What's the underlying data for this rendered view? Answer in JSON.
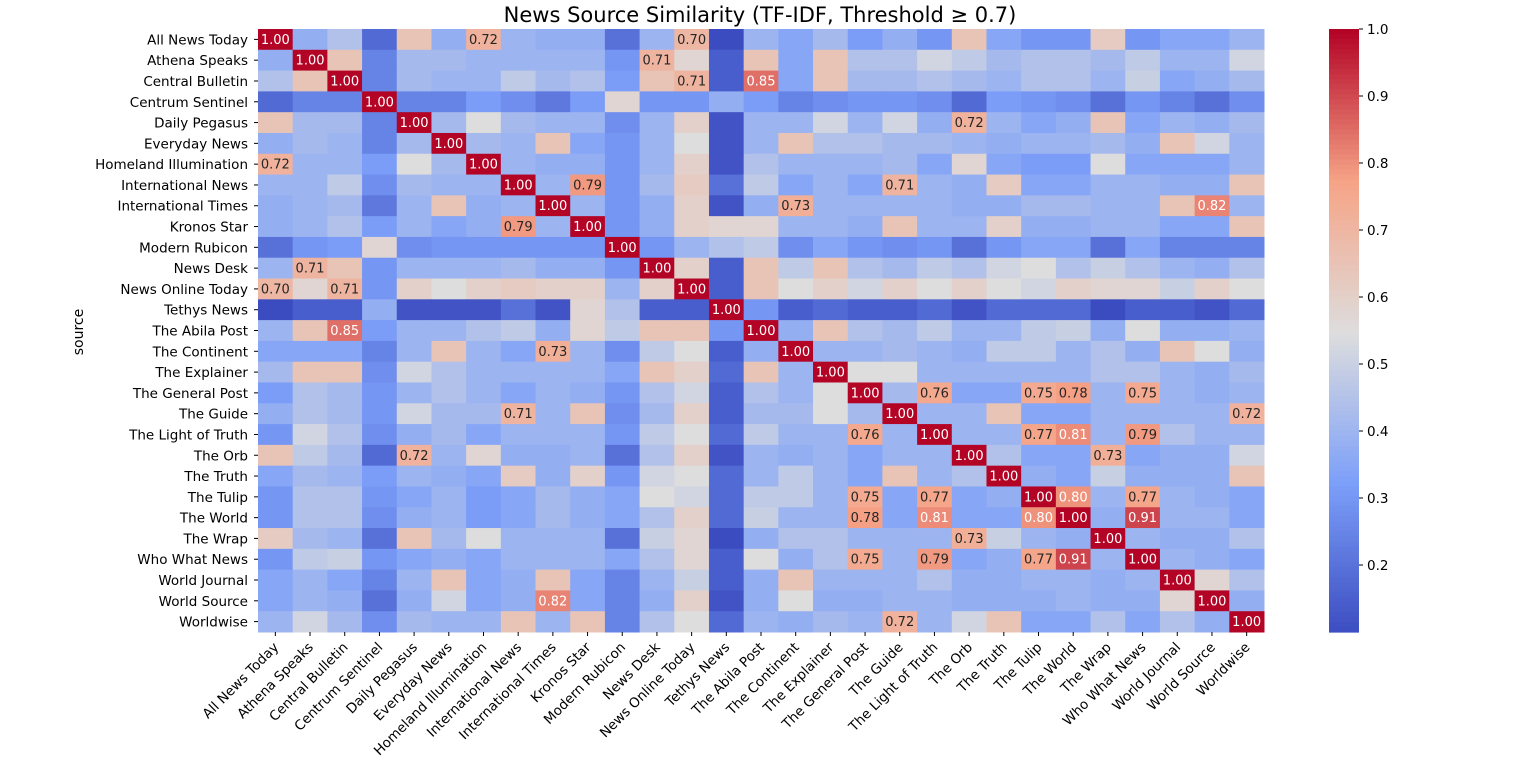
{
  "chart_data": {
    "type": "heatmap",
    "title": "News Source Similarity (TF-IDF, Threshold ≥ 0.7)",
    "ylabel": "source",
    "xlabel": "",
    "sources": [
      "All News Today",
      "Athena Speaks",
      "Central Bulletin",
      "Centrum Sentinel",
      "Daily Pegasus",
      "Everyday News",
      "Homeland Illumination",
      "International News",
      "International Times",
      "Kronos Star",
      "Modern Rubicon",
      "News Desk",
      "News Online Today",
      "Tethys News",
      "The Abila Post",
      "The Continent",
      "The Explainer",
      "The General Post",
      "The Guide",
      "The Light of Truth",
      "The Orb",
      "The Truth",
      "The Tulip",
      "The World",
      "The Wrap",
      "Who What News",
      "World Journal",
      "World Source",
      "Worldwise"
    ],
    "colormap": "coolwarm",
    "colorbar_range": [
      0.1,
      1.0
    ],
    "colorbar_ticks": [
      "0.2",
      "0.3",
      "0.4",
      "0.5",
      "0.6",
      "0.7",
      "0.8",
      "0.9",
      "1.0"
    ],
    "annotation_threshold": 0.7,
    "values": [
      [
        1.0,
        0.38,
        0.45,
        0.18,
        0.65,
        0.38,
        0.72,
        0.4,
        0.38,
        0.38,
        0.2,
        0.4,
        0.7,
        0.1,
        0.4,
        0.35,
        0.42,
        0.32,
        0.38,
        0.3,
        0.65,
        0.35,
        0.3,
        0.3,
        0.62,
        0.3,
        0.35,
        0.35,
        0.4
      ],
      [
        0.38,
        1.0,
        0.65,
        0.25,
        0.42,
        0.42,
        0.4,
        0.4,
        0.4,
        0.4,
        0.3,
        0.71,
        0.58,
        0.15,
        0.65,
        0.35,
        0.65,
        0.45,
        0.45,
        0.52,
        0.48,
        0.42,
        0.45,
        0.45,
        0.42,
        0.48,
        0.4,
        0.4,
        0.52
      ],
      [
        0.45,
        0.65,
        1.0,
        0.25,
        0.42,
        0.4,
        0.4,
        0.48,
        0.42,
        0.45,
        0.32,
        0.65,
        0.71,
        0.15,
        0.85,
        0.35,
        0.65,
        0.42,
        0.42,
        0.45,
        0.42,
        0.4,
        0.45,
        0.45,
        0.4,
        0.5,
        0.35,
        0.38,
        0.42
      ],
      [
        0.18,
        0.25,
        0.25,
        1.0,
        0.25,
        0.25,
        0.32,
        0.28,
        0.22,
        0.32,
        0.58,
        0.3,
        0.3,
        0.38,
        0.32,
        0.25,
        0.28,
        0.3,
        0.3,
        0.28,
        0.18,
        0.32,
        0.3,
        0.28,
        0.2,
        0.3,
        0.25,
        0.2,
        0.28
      ],
      [
        0.65,
        0.42,
        0.42,
        0.25,
        1.0,
        0.42,
        0.55,
        0.42,
        0.4,
        0.4,
        0.28,
        0.4,
        0.6,
        0.12,
        0.4,
        0.4,
        0.52,
        0.4,
        0.52,
        0.38,
        0.72,
        0.4,
        0.35,
        0.38,
        0.65,
        0.35,
        0.4,
        0.38,
        0.42
      ],
      [
        0.38,
        0.42,
        0.4,
        0.25,
        0.42,
        1.0,
        0.42,
        0.4,
        0.65,
        0.35,
        0.3,
        0.4,
        0.55,
        0.12,
        0.4,
        0.65,
        0.45,
        0.45,
        0.42,
        0.42,
        0.4,
        0.38,
        0.4,
        0.4,
        0.42,
        0.38,
        0.65,
        0.52,
        0.4
      ],
      [
        0.72,
        0.4,
        0.4,
        0.32,
        0.55,
        0.42,
        1.0,
        0.4,
        0.38,
        0.38,
        0.3,
        0.4,
        0.6,
        0.12,
        0.45,
        0.4,
        0.4,
        0.4,
        0.42,
        0.35,
        0.58,
        0.35,
        0.32,
        0.32,
        0.55,
        0.35,
        0.35,
        0.35,
        0.4
      ],
      [
        0.4,
        0.4,
        0.48,
        0.28,
        0.42,
        0.4,
        0.4,
        1.0,
        0.4,
        0.79,
        0.3,
        0.42,
        0.62,
        0.2,
        0.48,
        0.35,
        0.4,
        0.35,
        0.71,
        0.4,
        0.38,
        0.62,
        0.35,
        0.35,
        0.4,
        0.4,
        0.38,
        0.38,
        0.65
      ],
      [
        0.38,
        0.4,
        0.42,
        0.22,
        0.4,
        0.65,
        0.38,
        0.4,
        1.0,
        0.4,
        0.3,
        0.38,
        0.6,
        0.12,
        0.38,
        0.73,
        0.4,
        0.4,
        0.4,
        0.4,
        0.38,
        0.38,
        0.42,
        0.42,
        0.4,
        0.4,
        0.65,
        0.82,
        0.4
      ],
      [
        0.38,
        0.4,
        0.45,
        0.32,
        0.4,
        0.35,
        0.38,
        0.79,
        0.4,
        1.0,
        0.3,
        0.38,
        0.6,
        0.58,
        0.58,
        0.4,
        0.4,
        0.38,
        0.65,
        0.4,
        0.4,
        0.6,
        0.38,
        0.38,
        0.4,
        0.4,
        0.35,
        0.35,
        0.65
      ],
      [
        0.2,
        0.3,
        0.32,
        0.58,
        0.28,
        0.3,
        0.3,
        0.3,
        0.3,
        0.3,
        1.0,
        0.3,
        0.4,
        0.45,
        0.48,
        0.28,
        0.35,
        0.3,
        0.28,
        0.3,
        0.2,
        0.3,
        0.35,
        0.35,
        0.2,
        0.35,
        0.25,
        0.25,
        0.25
      ],
      [
        0.4,
        0.71,
        0.65,
        0.3,
        0.4,
        0.4,
        0.4,
        0.42,
        0.38,
        0.38,
        0.3,
        1.0,
        0.6,
        0.15,
        0.65,
        0.48,
        0.65,
        0.45,
        0.42,
        0.48,
        0.45,
        0.52,
        0.55,
        0.45,
        0.5,
        0.45,
        0.4,
        0.38,
        0.45
      ],
      [
        0.7,
        0.58,
        0.71,
        0.3,
        0.6,
        0.55,
        0.6,
        0.62,
        0.6,
        0.6,
        0.4,
        0.6,
        1.0,
        0.15,
        0.65,
        0.55,
        0.6,
        0.52,
        0.6,
        0.55,
        0.6,
        0.55,
        0.52,
        0.6,
        0.58,
        0.58,
        0.5,
        0.6,
        0.55
      ],
      [
        0.1,
        0.15,
        0.15,
        0.38,
        0.12,
        0.12,
        0.12,
        0.2,
        0.12,
        0.58,
        0.45,
        0.15,
        0.15,
        1.0,
        0.3,
        0.15,
        0.18,
        0.15,
        0.15,
        0.18,
        0.12,
        0.18,
        0.18,
        0.18,
        0.1,
        0.15,
        0.15,
        0.12,
        0.18
      ],
      [
        0.4,
        0.65,
        0.85,
        0.32,
        0.4,
        0.4,
        0.45,
        0.48,
        0.38,
        0.58,
        0.48,
        0.65,
        0.65,
        0.3,
        1.0,
        0.38,
        0.65,
        0.45,
        0.42,
        0.48,
        0.4,
        0.4,
        0.48,
        0.5,
        0.38,
        0.55,
        0.38,
        0.38,
        0.4
      ],
      [
        0.35,
        0.35,
        0.35,
        0.25,
        0.4,
        0.65,
        0.4,
        0.35,
        0.73,
        0.4,
        0.28,
        0.48,
        0.55,
        0.15,
        0.38,
        1.0,
        0.4,
        0.4,
        0.42,
        0.4,
        0.38,
        0.48,
        0.48,
        0.4,
        0.45,
        0.38,
        0.65,
        0.55,
        0.38
      ],
      [
        0.42,
        0.65,
        0.65,
        0.28,
        0.52,
        0.45,
        0.4,
        0.4,
        0.4,
        0.4,
        0.35,
        0.65,
        0.6,
        0.18,
        0.65,
        0.4,
        1.0,
        0.55,
        0.55,
        0.4,
        0.4,
        0.4,
        0.4,
        0.4,
        0.45,
        0.45,
        0.4,
        0.38,
        0.42
      ],
      [
        0.32,
        0.45,
        0.42,
        0.3,
        0.4,
        0.45,
        0.4,
        0.35,
        0.4,
        0.38,
        0.3,
        0.45,
        0.52,
        0.15,
        0.45,
        0.4,
        0.55,
        1.0,
        0.42,
        0.76,
        0.35,
        0.35,
        0.75,
        0.78,
        0.4,
        0.75,
        0.4,
        0.38,
        0.4
      ],
      [
        0.38,
        0.45,
        0.42,
        0.3,
        0.52,
        0.42,
        0.42,
        0.71,
        0.4,
        0.65,
        0.28,
        0.42,
        0.6,
        0.15,
        0.42,
        0.42,
        0.55,
        0.42,
        1.0,
        0.4,
        0.4,
        0.65,
        0.35,
        0.35,
        0.4,
        0.4,
        0.4,
        0.4,
        0.72
      ],
      [
        0.3,
        0.52,
        0.45,
        0.28,
        0.38,
        0.42,
        0.35,
        0.4,
        0.4,
        0.4,
        0.3,
        0.48,
        0.55,
        0.18,
        0.48,
        0.4,
        0.4,
        0.76,
        0.4,
        1.0,
        0.4,
        0.4,
        0.77,
        0.81,
        0.4,
        0.79,
        0.45,
        0.4,
        0.4
      ],
      [
        0.65,
        0.48,
        0.42,
        0.18,
        0.72,
        0.4,
        0.58,
        0.38,
        0.38,
        0.4,
        0.2,
        0.45,
        0.6,
        0.12,
        0.4,
        0.38,
        0.4,
        0.35,
        0.4,
        0.4,
        1.0,
        0.45,
        0.35,
        0.35,
        0.73,
        0.35,
        0.38,
        0.38,
        0.52
      ],
      [
        0.35,
        0.42,
        0.4,
        0.32,
        0.4,
        0.38,
        0.35,
        0.62,
        0.38,
        0.6,
        0.3,
        0.52,
        0.55,
        0.18,
        0.4,
        0.48,
        0.4,
        0.35,
        0.65,
        0.4,
        0.45,
        1.0,
        0.38,
        0.35,
        0.5,
        0.38,
        0.38,
        0.38,
        0.65
      ],
      [
        0.3,
        0.45,
        0.45,
        0.3,
        0.35,
        0.4,
        0.32,
        0.35,
        0.42,
        0.38,
        0.35,
        0.55,
        0.52,
        0.18,
        0.48,
        0.48,
        0.4,
        0.75,
        0.35,
        0.77,
        0.35,
        0.38,
        1.0,
        0.8,
        0.4,
        0.77,
        0.4,
        0.38,
        0.35
      ],
      [
        0.3,
        0.45,
        0.45,
        0.28,
        0.38,
        0.4,
        0.32,
        0.35,
        0.42,
        0.38,
        0.35,
        0.45,
        0.6,
        0.18,
        0.5,
        0.4,
        0.4,
        0.78,
        0.35,
        0.81,
        0.35,
        0.35,
        0.8,
        1.0,
        0.38,
        0.91,
        0.4,
        0.4,
        0.35
      ],
      [
        0.62,
        0.42,
        0.4,
        0.2,
        0.65,
        0.42,
        0.55,
        0.4,
        0.4,
        0.4,
        0.2,
        0.5,
        0.58,
        0.1,
        0.38,
        0.45,
        0.45,
        0.4,
        0.4,
        0.4,
        0.73,
        0.5,
        0.4,
        0.38,
        1.0,
        0.4,
        0.38,
        0.38,
        0.45
      ],
      [
        0.3,
        0.48,
        0.5,
        0.3,
        0.35,
        0.38,
        0.35,
        0.4,
        0.4,
        0.4,
        0.35,
        0.45,
        0.58,
        0.15,
        0.55,
        0.38,
        0.45,
        0.75,
        0.4,
        0.79,
        0.35,
        0.38,
        0.77,
        0.91,
        0.4,
        1.0,
        0.4,
        0.38,
        0.35
      ],
      [
        0.35,
        0.4,
        0.35,
        0.25,
        0.4,
        0.65,
        0.35,
        0.38,
        0.65,
        0.35,
        0.25,
        0.4,
        0.5,
        0.15,
        0.38,
        0.65,
        0.4,
        0.4,
        0.4,
        0.45,
        0.38,
        0.38,
        0.4,
        0.4,
        0.38,
        0.4,
        1.0,
        0.58,
        0.45
      ],
      [
        0.35,
        0.4,
        0.38,
        0.2,
        0.38,
        0.52,
        0.35,
        0.38,
        0.82,
        0.35,
        0.25,
        0.38,
        0.6,
        0.12,
        0.38,
        0.55,
        0.38,
        0.38,
        0.4,
        0.4,
        0.38,
        0.38,
        0.38,
        0.4,
        0.38,
        0.38,
        0.58,
        1.0,
        0.38
      ],
      [
        0.4,
        0.52,
        0.42,
        0.28,
        0.42,
        0.4,
        0.4,
        0.65,
        0.4,
        0.65,
        0.25,
        0.45,
        0.55,
        0.18,
        0.4,
        0.38,
        0.42,
        0.4,
        0.72,
        0.4,
        0.52,
        0.65,
        0.35,
        0.35,
        0.45,
        0.35,
        0.45,
        0.38,
        1.0
      ]
    ]
  }
}
